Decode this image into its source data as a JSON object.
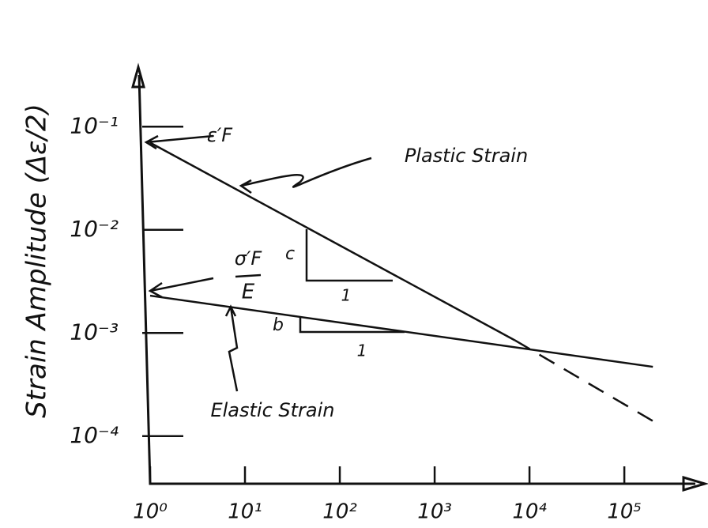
{
  "chart_data": {
    "type": "line",
    "y_label": "Strain Amplitude (Δε/2)",
    "x_log": true,
    "y_log": true,
    "grid": false,
    "color": "#111111",
    "xlim": [
      1,
      500000
    ],
    "ylim": [
      3e-05,
      0.3
    ],
    "xticks": [
      {
        "value": 1,
        "label": "10⁰"
      },
      {
        "value": 10,
        "label": "10¹"
      },
      {
        "value": 100,
        "label": "10²"
      },
      {
        "value": 1000,
        "label": "10³"
      },
      {
        "value": 10000,
        "label": "10⁴"
      },
      {
        "value": 100000,
        "label": "10⁵"
      }
    ],
    "yticks": [
      {
        "value": 0.1,
        "label": "10⁻¹"
      },
      {
        "value": 0.01,
        "label": "10⁻²"
      },
      {
        "value": 0.001,
        "label": "10⁻³"
      },
      {
        "value": 0.0001,
        "label": "10⁻⁴"
      }
    ],
    "series": [
      {
        "name": "Plastic Strain",
        "dashed": false,
        "x": [
          1,
          7000
        ],
        "values": [
          0.07,
          0.00085
        ]
      },
      {
        "dashed": true,
        "x": [
          7000,
          230000
        ],
        "values": [
          0.00085,
          0.00013
        ]
      },
      {
        "name": "Elastic Strain",
        "dashed": false,
        "x": [
          1,
          200000
        ],
        "values": [
          0.0023,
          0.00047
        ]
      }
    ],
    "annotations": {
      "plastic_intercept": "ε′F",
      "elastic_numerator": "σ′F",
      "elastic_denominator": "E",
      "plastic_slope": "c",
      "plastic_run": "1",
      "elastic_slope": "b",
      "elastic_run": "1"
    }
  }
}
